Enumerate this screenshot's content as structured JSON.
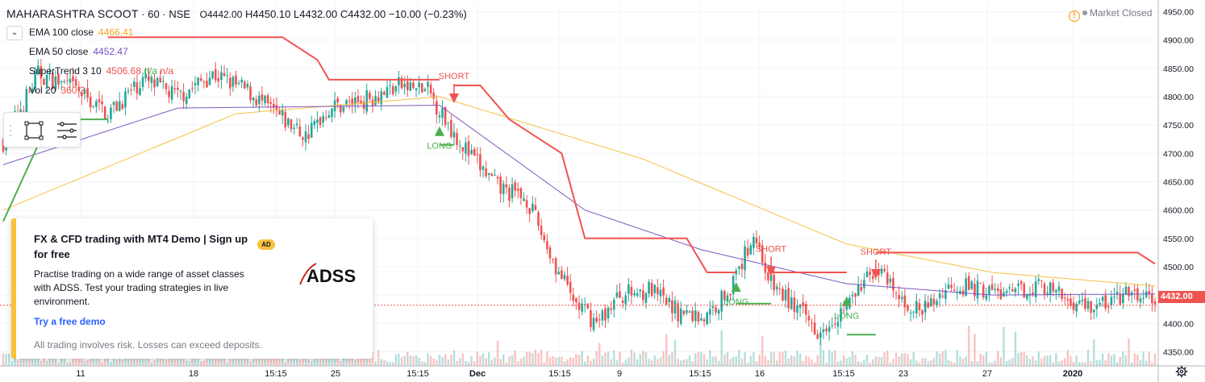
{
  "header": {
    "symbol": "MAHARASHTRA SCOOT",
    "interval": "60",
    "exchange": "NSE",
    "sep": "·",
    "open": "O4442.00",
    "high": "H4450.10",
    "low": "L4432.00",
    "close": "C4432.00",
    "change": "−10.00 (−0.23%)"
  },
  "indicators": [
    {
      "name": "EMA 100 close",
      "value": "4466.41",
      "color": "#f5a623"
    },
    {
      "name": "EMA 50 close",
      "value": "4452.47",
      "color": "#7b4fcf"
    },
    {
      "name": "SuperTrend 3 10",
      "value": "4506.68",
      "extra": "n/a",
      "extra2": "n/a",
      "color": "#ef5350"
    },
    {
      "name": "Vol 20",
      "value": "360",
      "extra": "2",
      "color": "#ef5350"
    }
  ],
  "market_status": "Market Closed",
  "ad": {
    "title": "FX & CFD trading with MT4 Demo | Sign up for free",
    "badge": "AD",
    "body": "Practise trading on a wide range of asset classes with ADSS. Test your trading strategies in live environment.",
    "cta": "Try a free demo",
    "disclaimer": "All trading involves risk. Losses can exceed deposits.",
    "logo_text": "ADSS"
  },
  "current_price_label": "4432.00",
  "colors": {
    "up": "#26a69a",
    "down": "#ef5350",
    "ema100": "#f5c242",
    "ema50": "#7e57c2",
    "st_up": "#4caf50",
    "st_down": "#ef5350"
  },
  "chart_data": {
    "type": "candlestick",
    "ylim": [
      4325,
      4965
    ],
    "y_ticks": [
      4350,
      4400,
      4450,
      4500,
      4550,
      4600,
      4650,
      4700,
      4750,
      4800,
      4850,
      4900,
      4950
    ],
    "x_ticks": [
      "11",
      "18",
      "15:15",
      "25",
      "15:15",
      "Dec",
      "15:15",
      "9",
      "15:15",
      "16",
      "15:15",
      "23",
      "27",
      "2020"
    ],
    "last_price": 4432.0,
    "signals": [
      {
        "label": "LONG",
        "type": "long",
        "price": 4745
      },
      {
        "label": "SHORT",
        "type": "short",
        "price": 4800
      },
      {
        "label": "LONG",
        "type": "long",
        "price": 4470
      },
      {
        "label": "SHORT",
        "type": "short",
        "price": 4495
      },
      {
        "label": "LONG",
        "type": "long",
        "price": 4445
      },
      {
        "label": "SHORT",
        "type": "short",
        "price": 4490
      }
    ],
    "close_anchors": [
      [
        0,
        4720
      ],
      [
        12,
        4840
      ],
      [
        24,
        4815
      ],
      [
        36,
        4770
      ],
      [
        48,
        4830
      ],
      [
        60,
        4800
      ],
      [
        72,
        4840
      ],
      [
        84,
        4810
      ],
      [
        96,
        4760
      ],
      [
        104,
        4730
      ],
      [
        112,
        4780
      ],
      [
        124,
        4795
      ],
      [
        136,
        4820
      ],
      [
        146,
        4810
      ],
      [
        152,
        4760
      ],
      [
        160,
        4700
      ],
      [
        170,
        4640
      ],
      [
        180,
        4620
      ],
      [
        190,
        4500
      ],
      [
        196,
        4440
      ],
      [
        204,
        4400
      ],
      [
        212,
        4450
      ],
      [
        222,
        4460
      ],
      [
        232,
        4420
      ],
      [
        242,
        4410
      ],
      [
        252,
        4480
      ],
      [
        258,
        4560
      ],
      [
        264,
        4470
      ],
      [
        272,
        4430
      ],
      [
        280,
        4390
      ],
      [
        290,
        4430
      ],
      [
        300,
        4500
      ],
      [
        308,
        4440
      ],
      [
        316,
        4420
      ],
      [
        326,
        4470
      ],
      [
        336,
        4460
      ],
      [
        346,
        4450
      ],
      [
        356,
        4470
      ],
      [
        366,
        4440
      ],
      [
        376,
        4430
      ],
      [
        386,
        4450
      ],
      [
        396,
        4442
      ]
    ],
    "ema100_anchors": [
      [
        0,
        4600
      ],
      [
        80,
        4770
      ],
      [
        150,
        4800
      ],
      [
        220,
        4690
      ],
      [
        290,
        4540
      ],
      [
        340,
        4490
      ],
      [
        396,
        4466
      ]
    ],
    "ema50_anchors": [
      [
        0,
        4680
      ],
      [
        60,
        4780
      ],
      [
        150,
        4785
      ],
      [
        200,
        4600
      ],
      [
        240,
        4530
      ],
      [
        290,
        4470
      ],
      [
        340,
        4450
      ],
      [
        396,
        4452
      ]
    ],
    "supertrend": [
      {
        "dir": "up",
        "points": [
          [
            0,
            4580
          ],
          [
            16,
            4760
          ],
          [
            36,
            4760
          ]
        ]
      },
      {
        "dir": "down",
        "points": [
          [
            36,
            4905
          ],
          [
            96,
            4905
          ],
          [
            108,
            4865
          ],
          [
            112,
            4830
          ],
          [
            150,
            4830
          ]
        ]
      },
      {
        "dir": "up",
        "points": [
          [
            150,
            4715
          ],
          [
            155,
            4715
          ]
        ]
      },
      {
        "dir": "down",
        "points": [
          [
            155,
            4820
          ],
          [
            164,
            4820
          ],
          [
            174,
            4760
          ],
          [
            186,
            4720
          ],
          [
            192,
            4700
          ],
          [
            200,
            4550
          ],
          [
            235,
            4550
          ],
          [
            242,
            4490
          ],
          [
            252,
            4490
          ]
        ]
      },
      {
        "dir": "up",
        "points": [
          [
            252,
            4435
          ],
          [
            264,
            4435
          ]
        ]
      },
      {
        "dir": "down",
        "points": [
          [
            264,
            4490
          ],
          [
            290,
            4490
          ]
        ]
      },
      {
        "dir": "up",
        "points": [
          [
            290,
            4380
          ],
          [
            300,
            4380
          ]
        ]
      },
      {
        "dir": "down",
        "points": [
          [
            300,
            4525
          ],
          [
            390,
            4525
          ],
          [
            396,
            4505
          ]
        ]
      }
    ]
  }
}
